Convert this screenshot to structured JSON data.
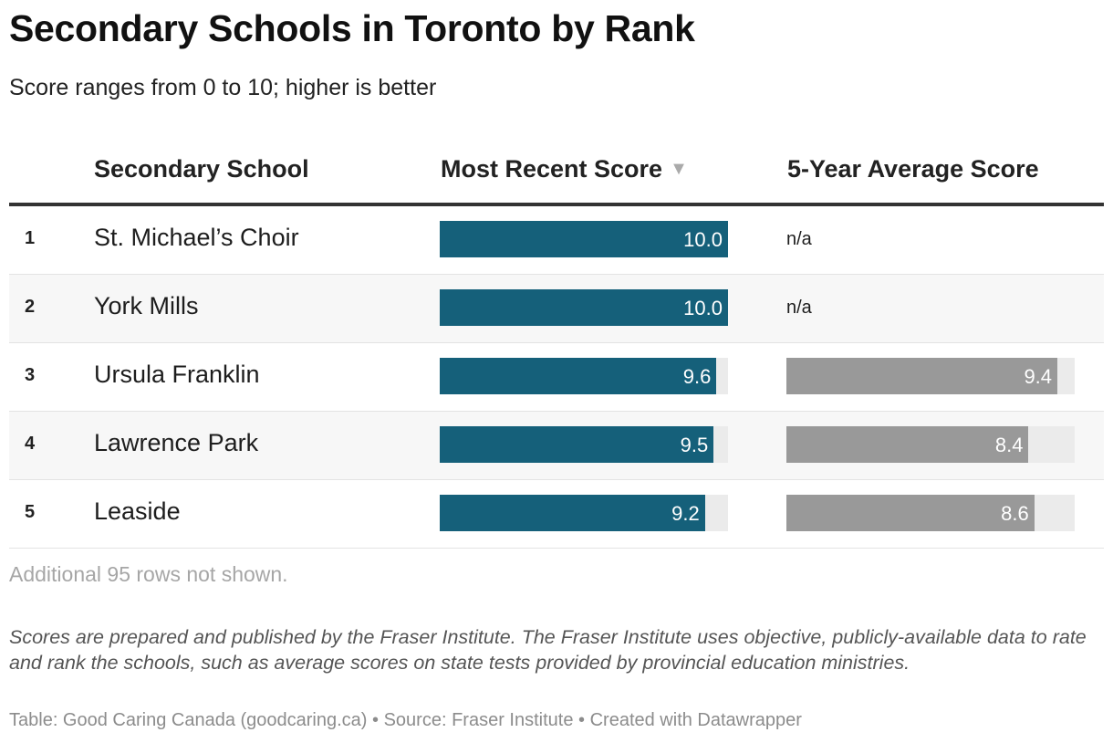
{
  "chart_data": {
    "type": "table",
    "title": "Secondary Schools in Toronto by Rank",
    "subtitle": "Score ranges from 0 to 10; higher is better",
    "score_range": [
      0,
      10
    ],
    "columns": [
      "Secondary School",
      "Most Recent Score",
      "5-Year Average Score"
    ],
    "sorted_by": "Most Recent Score",
    "sort_indicator": "▼",
    "rows": [
      {
        "rank": "1",
        "school": "St. Michael’s Choir",
        "recent": 10.0,
        "recent_label": "10.0",
        "average": null,
        "average_label": "n/a"
      },
      {
        "rank": "2",
        "school": "York Mills",
        "recent": 10.0,
        "recent_label": "10.0",
        "average": null,
        "average_label": "n/a"
      },
      {
        "rank": "3",
        "school": "Ursula Franklin",
        "recent": 9.6,
        "recent_label": "9.6",
        "average": 9.4,
        "average_label": "9.4"
      },
      {
        "rank": "4",
        "school": "Lawrence Park",
        "recent": 9.5,
        "recent_label": "9.5",
        "average": 8.4,
        "average_label": "8.4"
      },
      {
        "rank": "5",
        "school": "Leaside",
        "recent": 9.2,
        "recent_label": "9.2",
        "average": 8.6,
        "average_label": "8.6"
      }
    ],
    "more_rows_note": "Additional 95 rows not shown.",
    "notes": "Scores are prepared and published by the Fraser Institute. The Fraser Institute uses objective, publicly-available data to rate and rank the schools, such as average scores on state tests provided by provincial education ministries.",
    "footer": {
      "table_label": "Table: Good Caring Canada (goodcaring.ca)",
      "separator": " • ",
      "source": "Source: Fraser Institute",
      "credit": "Created with Datawrapper"
    }
  },
  "colors": {
    "recent_bar": "#15607a",
    "average_bar": "#999999",
    "track": "#ebebeb"
  }
}
